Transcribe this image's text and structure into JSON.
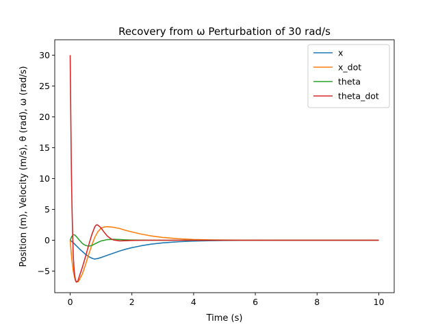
{
  "chart_data": {
    "type": "line",
    "title": "Recovery from ω Perturbation of 30 rad/s",
    "xlabel": "Time (s)",
    "ylabel": "Position (m), Velocity (m/s), θ (rad), ω (rad/s)",
    "xlim": [
      -0.5,
      10.5
    ],
    "ylim": [
      -8.5,
      32.5
    ],
    "xticks": [
      0,
      2,
      4,
      6,
      8,
      10
    ],
    "yticks": [
      -5,
      0,
      5,
      10,
      15,
      20,
      25,
      30
    ],
    "grid": false,
    "legend_position": "top-right",
    "series": [
      {
        "name": "x",
        "color": "#1f77b4",
        "points": [
          [
            0,
            0
          ],
          [
            0.1,
            -0.4
          ],
          [
            0.2,
            -0.9
          ],
          [
            0.3,
            -1.4
          ],
          [
            0.4,
            -1.85
          ],
          [
            0.5,
            -2.3
          ],
          [
            0.6,
            -2.65
          ],
          [
            0.7,
            -2.9
          ],
          [
            0.75,
            -3.0
          ],
          [
            0.8,
            -3.05
          ],
          [
            0.9,
            -2.95
          ],
          [
            1.0,
            -2.8
          ],
          [
            1.2,
            -2.45
          ],
          [
            1.4,
            -2.1
          ],
          [
            1.6,
            -1.75
          ],
          [
            1.8,
            -1.45
          ],
          [
            2.0,
            -1.2
          ],
          [
            2.3,
            -0.9
          ],
          [
            2.6,
            -0.65
          ],
          [
            3.0,
            -0.42
          ],
          [
            3.5,
            -0.25
          ],
          [
            4.0,
            -0.14
          ],
          [
            4.5,
            -0.08
          ],
          [
            5.0,
            -0.04
          ],
          [
            6.0,
            -0.01
          ],
          [
            7,
            0
          ],
          [
            10,
            0
          ]
        ]
      },
      {
        "name": "x_dot",
        "color": "#ff7f0e",
        "points": [
          [
            0,
            0
          ],
          [
            0.05,
            -3.0
          ],
          [
            0.1,
            -5.0
          ],
          [
            0.15,
            -6.2
          ],
          [
            0.2,
            -6.7
          ],
          [
            0.25,
            -6.75
          ],
          [
            0.3,
            -6.4
          ],
          [
            0.4,
            -5.4
          ],
          [
            0.5,
            -3.9
          ],
          [
            0.6,
            -2.3
          ],
          [
            0.7,
            -0.8
          ],
          [
            0.8,
            0.5
          ],
          [
            0.9,
            1.4
          ],
          [
            1.0,
            1.95
          ],
          [
            1.1,
            2.15
          ],
          [
            1.2,
            2.2
          ],
          [
            1.4,
            2.1
          ],
          [
            1.6,
            1.9
          ],
          [
            1.8,
            1.6
          ],
          [
            2.0,
            1.35
          ],
          [
            2.3,
            1.0
          ],
          [
            2.6,
            0.72
          ],
          [
            3.0,
            0.45
          ],
          [
            3.5,
            0.25
          ],
          [
            4.0,
            0.12
          ],
          [
            4.5,
            0.06
          ],
          [
            5.0,
            0.03
          ],
          [
            6,
            0.01
          ],
          [
            7,
            0
          ],
          [
            10,
            0
          ]
        ]
      },
      {
        "name": "theta",
        "color": "#2ca02c",
        "points": [
          [
            0,
            0
          ],
          [
            0.05,
            0.6
          ],
          [
            0.1,
            0.9
          ],
          [
            0.15,
            0.85
          ],
          [
            0.2,
            0.6
          ],
          [
            0.3,
            0.0
          ],
          [
            0.4,
            -0.55
          ],
          [
            0.5,
            -0.85
          ],
          [
            0.6,
            -0.95
          ],
          [
            0.7,
            -0.85
          ],
          [
            0.8,
            -0.6
          ],
          [
            0.9,
            -0.35
          ],
          [
            1.0,
            -0.12
          ],
          [
            1.2,
            0.1
          ],
          [
            1.4,
            0.15
          ],
          [
            1.6,
            0.12
          ],
          [
            1.8,
            0.07
          ],
          [
            2.0,
            0.04
          ],
          [
            2.5,
            0.01
          ],
          [
            3,
            0
          ],
          [
            10,
            0
          ]
        ]
      },
      {
        "name": "theta_dot",
        "color": "#d62728",
        "points": [
          [
            0,
            30
          ],
          [
            0.02,
            20
          ],
          [
            0.04,
            11
          ],
          [
            0.06,
            5
          ],
          [
            0.08,
            1
          ],
          [
            0.1,
            -2.5
          ],
          [
            0.13,
            -5.0
          ],
          [
            0.17,
            -6.5
          ],
          [
            0.2,
            -6.8
          ],
          [
            0.25,
            -6.6
          ],
          [
            0.3,
            -5.8
          ],
          [
            0.4,
            -4.3
          ],
          [
            0.5,
            -2.6
          ],
          [
            0.6,
            -0.8
          ],
          [
            0.7,
            0.9
          ],
          [
            0.8,
            2.2
          ],
          [
            0.85,
            2.5
          ],
          [
            0.9,
            2.45
          ],
          [
            1.0,
            2.0
          ],
          [
            1.1,
            1.3
          ],
          [
            1.2,
            0.7
          ],
          [
            1.3,
            0.3
          ],
          [
            1.4,
            0.05
          ],
          [
            1.6,
            -0.1
          ],
          [
            1.8,
            -0.08
          ],
          [
            2.0,
            -0.04
          ],
          [
            2.5,
            0
          ],
          [
            10,
            0
          ]
        ]
      }
    ]
  }
}
